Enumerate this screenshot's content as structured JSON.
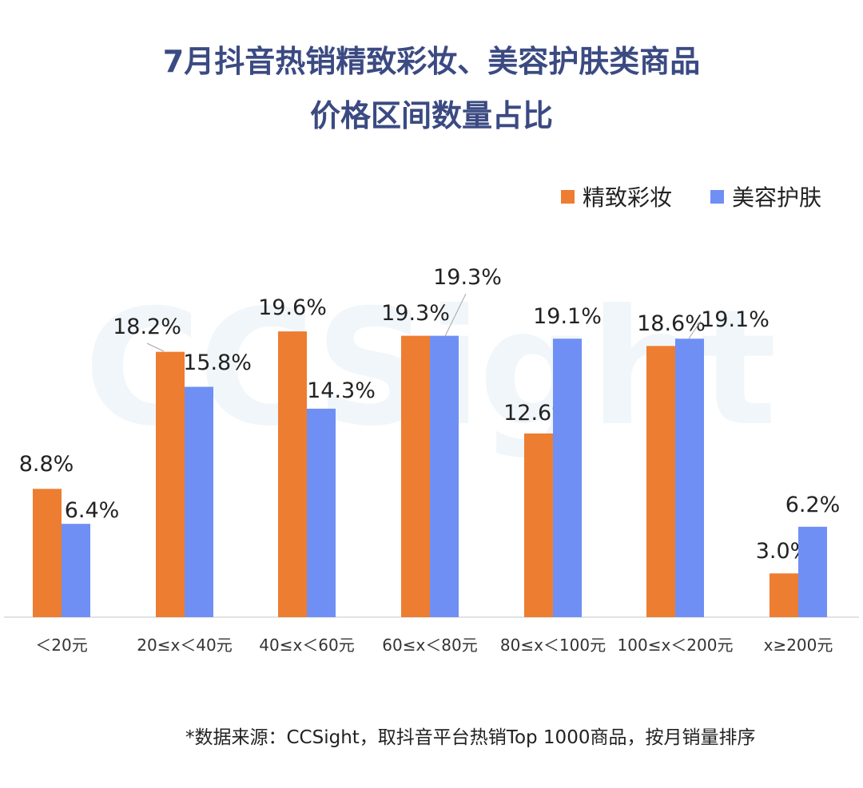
{
  "title": {
    "line1": "7月抖音热销精致彩妆、美容护肤类商品",
    "line2": "价格区间数量占比"
  },
  "watermark": "CCSight",
  "source_note": "*数据来源：CCSight，取抖音平台热销Top 1000商品，按月销量排序",
  "chart_data": {
    "type": "bar",
    "categories": [
      "＜20元",
      "20≤x＜40元",
      "40≤x＜60元",
      "60≤x＜80元",
      "80≤x＜100元",
      "100≤x＜200元",
      "x≥200元"
    ],
    "series": [
      {
        "name": "精致彩妆",
        "color": "#ed7d31",
        "values": [
          8.8,
          18.2,
          19.6,
          19.3,
          12.6,
          18.6,
          3.0
        ],
        "labels": [
          "8.8%",
          "18.2%",
          "19.6%",
          "19.3%",
          "12.6%",
          "18.6%",
          "3.0%"
        ]
      },
      {
        "name": "美容护肤",
        "color": "#6f8ff5",
        "values": [
          6.4,
          15.8,
          14.3,
          19.3,
          19.1,
          19.1,
          6.2
        ],
        "labels": [
          "6.4%",
          "15.8%",
          "14.3%",
          "19.3%",
          "19.1%",
          "19.1%",
          "6.2%"
        ]
      }
    ],
    "ylim": [
      0,
      20
    ],
    "grid": false,
    "legend_position": "top-right",
    "xlabel": "",
    "ylabel": ""
  }
}
